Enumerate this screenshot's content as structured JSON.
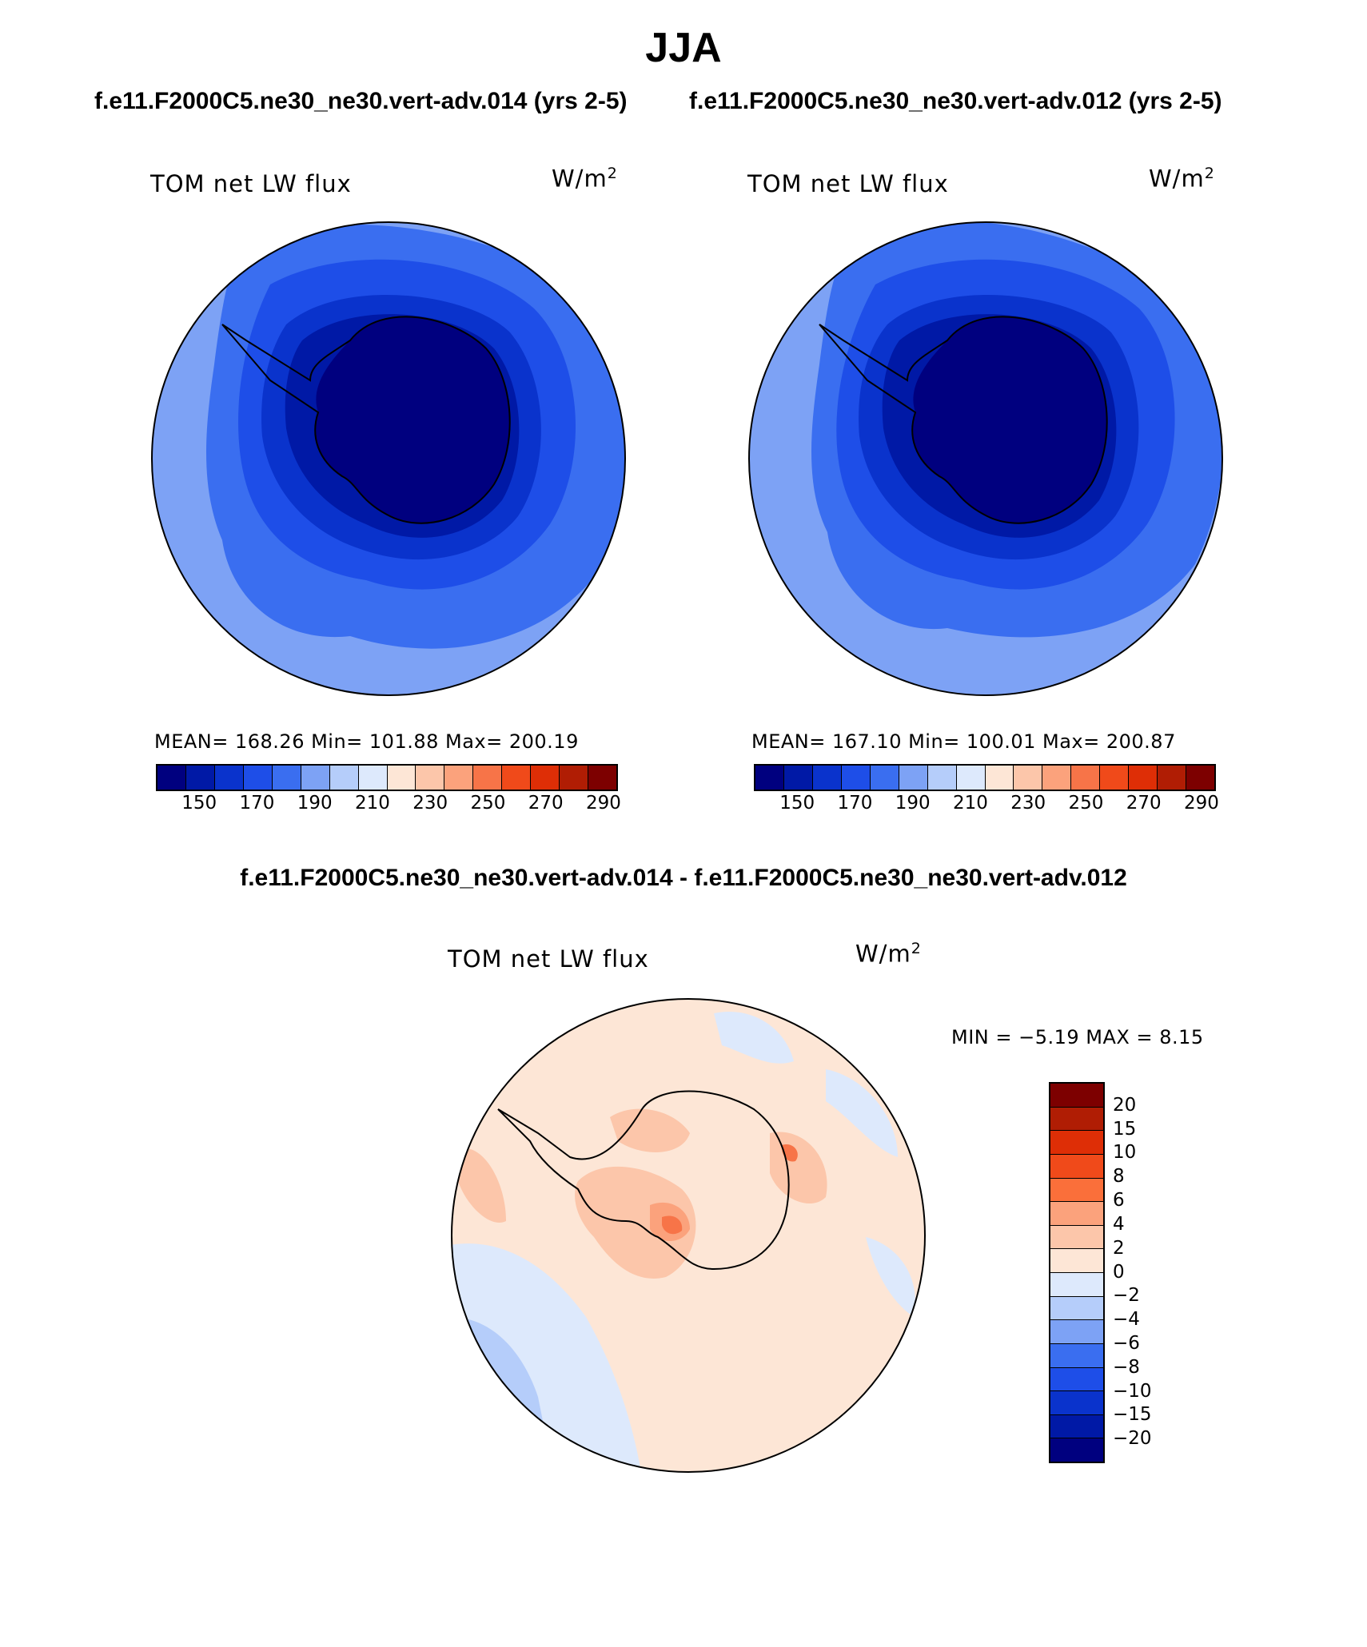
{
  "title": "JJA",
  "case1_header": "f.e11.F2000C5.ne30_ne30.vert-adv.014 (yrs 2-5)",
  "case2_header": "f.e11.F2000C5.ne30_ne30.vert-adv.012 (yrs 2-5)",
  "diff_header": "f.e11.F2000C5.ne30_ne30.vert-adv.014 - f.e11.F2000C5.ne30_ne30.vert-adv.012",
  "panel1": {
    "title": "TOM net LW flux",
    "units": "W/m",
    "units_exp": "2",
    "stats": "MEAN= 168.26   Min= 101.88   Max= 200.19"
  },
  "panel2": {
    "title": "TOM net LW flux",
    "units": "W/m",
    "units_exp": "2",
    "stats": "MEAN= 167.10   Min= 100.01   Max= 200.87"
  },
  "panel3": {
    "title": "TOM net LW flux",
    "units": "W/m",
    "units_exp": "2",
    "stats": "MIN =   −5.19 MAX =    8.15"
  },
  "abs_colorbar": {
    "colors": [
      "#00007f",
      "#0019a6",
      "#0a33cc",
      "#1e4ee8",
      "#3a6ef0",
      "#7da2f5",
      "#b5cdfa",
      "#dde9fc",
      "#fde6d6",
      "#fcc6aa",
      "#fba27c",
      "#f77448",
      "#f04a1a",
      "#de2e06",
      "#b01d04",
      "#7d0000"
    ],
    "labels": [
      "150",
      "170",
      "190",
      "210",
      "230",
      "250",
      "270",
      "290"
    ]
  },
  "diff_colorbar": {
    "colors": [
      "#7d0000",
      "#b01d04",
      "#de2e06",
      "#f04a1a",
      "#fa6f3a",
      "#fba27c",
      "#fcc6aa",
      "#fde6d6",
      "#dde9fc",
      "#b5cdfa",
      "#7da2f5",
      "#3a6ef0",
      "#1e4ee8",
      "#0a33cc",
      "#0019a6",
      "#00007f"
    ],
    "labels": [
      "20",
      "15",
      "10",
      "8",
      "6",
      "4",
      "2",
      "0",
      "−2",
      "−4",
      "−6",
      "−8",
      "−10",
      "−15",
      "−20"
    ]
  },
  "fill_colors": {
    "ocean_outer": "#7da2f5",
    "ocean_mid": "#3a6ef0",
    "ocean_inner": "#1e4ee8",
    "coast_ring": "#0a33cc",
    "shelf": "#0019a6",
    "continent": "#00007f",
    "diff_bg": "#fde6d6",
    "diff_neg": "#dde9fc",
    "diff_neg2": "#b5cdfa",
    "diff_pos": "#fcc6aa",
    "diff_pos2": "#fba27c",
    "diff_pos3": "#f77448"
  }
}
